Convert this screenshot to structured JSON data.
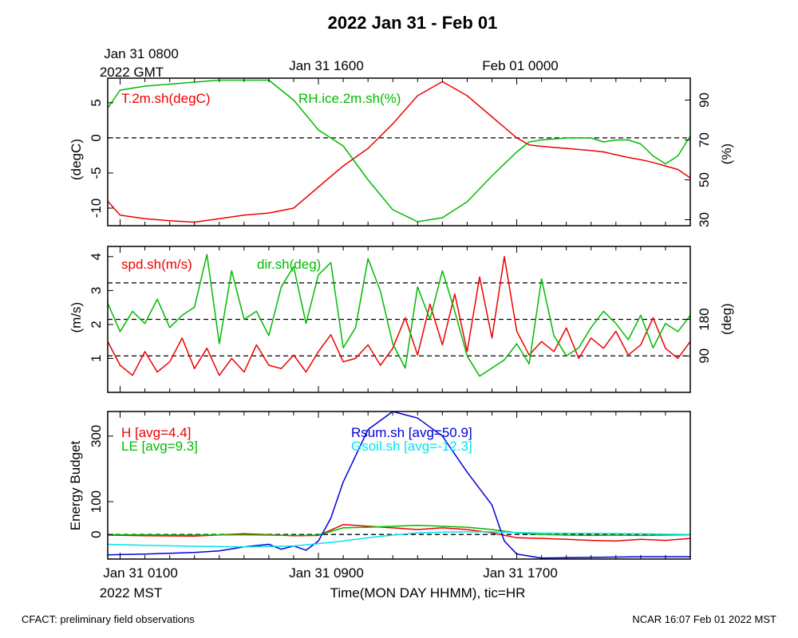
{
  "title": "2022 Jan 31 - Feb 01",
  "top_axis": {
    "gmt_ticks": [
      "Jan 31 0800",
      "Jan 31 1600",
      "Feb 01 0000"
    ],
    "gmt_year_label": "2022 GMT"
  },
  "bottom_axis": {
    "ticks": [
      "Jan 31 0100",
      "Jan 31 0900",
      "Jan 31 1700"
    ],
    "year_label": "2022 MST",
    "xlabel": "Time(MON DAY HHMM), tic=HR"
  },
  "footer": {
    "left": "CFACT: preliminary field observations",
    "right": "NCAR 16:07 Feb 01 2022 MST"
  },
  "colors": {
    "red": "#ee0000",
    "green": "#00bb00",
    "blue": "#0000dd",
    "cyan": "#00e5ee",
    "axis": "#000000"
  },
  "chart_data": [
    {
      "type": "line",
      "panel": "temperature-humidity",
      "x_unit": "hours since Jan 31 0000 MST",
      "xlim": [
        0.5,
        24.0
      ],
      "ylabel_left": "(degC)",
      "ylabel_right": "(%)",
      "ylim_left": [
        -12.5,
        8.5
      ],
      "ylim_right": [
        27,
        101
      ],
      "left_ticks": [
        "-10",
        "-5",
        "0",
        "5"
      ],
      "left_tick_values": [
        -10,
        -5,
        0,
        5
      ],
      "right_ticks": [
        "30",
        "50",
        "70",
        "90"
      ],
      "right_tick_values": [
        30,
        50,
        70,
        90
      ],
      "reference_lines_left": [
        0
      ],
      "series": [
        {
          "name": "T.2m.sh(degC)",
          "color": "red",
          "axis": "left",
          "x": [
            0.5,
            1,
            2,
            3,
            4,
            5,
            6,
            7,
            8,
            9,
            10,
            11,
            12,
            13,
            14,
            15,
            16,
            17,
            17.5,
            18,
            19,
            20,
            20.5,
            21,
            21.5,
            22,
            22.5,
            23,
            23.5,
            24
          ],
          "y": [
            -9,
            -11,
            -11.5,
            -11.8,
            -12,
            -11.5,
            -11,
            -10.7,
            -10,
            -7,
            -4,
            -1.5,
            2,
            6,
            8,
            6,
            3,
            0,
            -1,
            -1.2,
            -1.5,
            -1.8,
            -2,
            -2.4,
            -2.8,
            -3.1,
            -3.5,
            -4,
            -4.5,
            -5.7
          ]
        },
        {
          "name": "RH.ice.2m.sh(%)",
          "color": "green",
          "axis": "right",
          "x": [
            0.5,
            1,
            2,
            3,
            4,
            5,
            6,
            7,
            8,
            9,
            10,
            11,
            12,
            13,
            14,
            15,
            16,
            17,
            17.5,
            18,
            19,
            20,
            20.5,
            21,
            21.5,
            22,
            22.5,
            23,
            23.5,
            24
          ],
          "y": [
            86,
            95,
            97,
            98,
            99,
            100,
            100,
            100,
            90,
            75,
            67,
            50,
            35,
            29,
            31,
            39,
            52,
            64,
            69,
            70,
            71,
            71,
            69,
            70,
            70,
            68,
            62,
            58,
            62,
            72
          ]
        }
      ],
      "legend_labels": [
        "T.2m.sh(degC)",
        "RH.ice.2m.sh(%)"
      ]
    },
    {
      "type": "line",
      "panel": "wind",
      "x_unit": "hours since Jan 31 0000 MST",
      "xlim": [
        0.5,
        24.0
      ],
      "ylabel_left": "(m/s)",
      "ylabel_right": "(deg)",
      "ylim_left": [
        0,
        4.3
      ],
      "ylim_right": [
        0,
        360
      ],
      "left_ticks": [
        "1",
        "2",
        "3",
        "4"
      ],
      "left_tick_values": [
        1,
        2,
        3,
        4
      ],
      "right_ticks": [
        "90",
        "180"
      ],
      "right_tick_values": [
        90,
        180
      ],
      "reference_lines_right": [
        90,
        180,
        270
      ],
      "series": [
        {
          "name": "spd.sh(m/s)",
          "color": "red",
          "axis": "left",
          "x": [
            0.5,
            1,
            1.5,
            2,
            2.5,
            3,
            3.5,
            4,
            4.5,
            5,
            5.5,
            6,
            6.5,
            7,
            7.5,
            8,
            8.5,
            9,
            9.5,
            10,
            10.5,
            11,
            11.5,
            12,
            12.5,
            13,
            13.5,
            14,
            14.5,
            15,
            15.5,
            16,
            16.5,
            17,
            17.5,
            18,
            18.5,
            19,
            19.5,
            20,
            20.5,
            21,
            21.5,
            22,
            22.5,
            23,
            23.5,
            24
          ],
          "y": [
            1.5,
            0.8,
            0.5,
            1.2,
            0.6,
            0.9,
            1.6,
            0.7,
            1.3,
            0.5,
            1.0,
            0.6,
            1.4,
            0.8,
            0.7,
            1.1,
            0.6,
            1.2,
            1.7,
            0.9,
            1.0,
            1.4,
            0.8,
            1.3,
            2.2,
            1.1,
            2.6,
            1.4,
            2.9,
            1.2,
            3.4,
            1.6,
            4.0,
            1.8,
            1.1,
            1.5,
            1.2,
            1.9,
            1.0,
            1.6,
            1.3,
            1.8,
            1.1,
            1.4,
            2.2,
            1.3,
            1.0,
            1.5
          ]
        },
        {
          "name": "dir.sh(deg)",
          "color": "green",
          "axis": "right",
          "x": [
            0.5,
            1,
            1.5,
            2,
            2.5,
            3,
            3.5,
            4,
            4.5,
            5,
            5.5,
            6,
            6.5,
            7,
            7.5,
            8,
            8.5,
            9,
            9.5,
            10,
            10.5,
            11,
            11.5,
            12,
            12.5,
            13,
            13.5,
            14,
            14.5,
            15,
            15.5,
            16,
            16.5,
            17,
            17.5,
            18,
            18.5,
            19,
            19.5,
            20,
            20.5,
            21,
            21.5,
            22,
            22.5,
            23,
            23.5,
            24
          ],
          "y": [
            220,
            150,
            200,
            170,
            230,
            160,
            190,
            210,
            340,
            120,
            300,
            180,
            200,
            140,
            260,
            310,
            170,
            290,
            320,
            110,
            160,
            330,
            250,
            120,
            60,
            260,
            180,
            300,
            200,
            90,
            40,
            60,
            80,
            120,
            70,
            280,
            140,
            90,
            110,
            160,
            200,
            170,
            130,
            190,
            110,
            170,
            150,
            190
          ]
        }
      ],
      "legend_labels": [
        "spd.sh(m/s)",
        "dir.sh(deg)"
      ]
    },
    {
      "type": "line",
      "panel": "energy-budget",
      "x_unit": "hours since Jan 31 0000 MST",
      "xlim": [
        0.5,
        24.0
      ],
      "ylabel_left": "Energy Budget",
      "ylim_left": [
        -75,
        375
      ],
      "left_ticks": [
        "0",
        "100",
        "300"
      ],
      "left_tick_values": [
        0,
        100,
        300
      ],
      "reference_lines_left": [
        0
      ],
      "series": [
        {
          "name": "H",
          "color": "red",
          "avg": "4.4",
          "x": [
            0.5,
            2,
            4,
            6,
            8,
            9,
            10,
            11,
            12,
            13,
            14,
            15,
            16,
            17,
            18,
            19,
            20,
            21,
            22,
            23,
            24
          ],
          "y": [
            -2,
            -4,
            -5,
            2,
            -4,
            -3,
            30,
            25,
            20,
            15,
            20,
            15,
            5,
            -10,
            -12,
            -15,
            -18,
            -20,
            -15,
            -18,
            -12
          ]
        },
        {
          "name": "LE",
          "color": "green",
          "avg": "9.3",
          "x": [
            0.5,
            2,
            4,
            6,
            8,
            9,
            10,
            11,
            12,
            13,
            14,
            15,
            16,
            17,
            18,
            19,
            20,
            21,
            22,
            23,
            24
          ],
          "y": [
            -1,
            -1,
            -2,
            -1,
            -3,
            -2,
            20,
            22,
            25,
            28,
            25,
            22,
            15,
            5,
            0,
            -2,
            -3,
            -2,
            -3,
            -2,
            -1
          ]
        },
        {
          "name": "Rsum.sh",
          "color": "blue",
          "avg": "50.9",
          "x": [
            0.5,
            2,
            4,
            5,
            6,
            7,
            7.5,
            8,
            8.5,
            9,
            9.5,
            10,
            11,
            12,
            13,
            14,
            15,
            16,
            16.5,
            17,
            18,
            20,
            22,
            24
          ],
          "y": [
            -62,
            -60,
            -55,
            -50,
            -38,
            -30,
            -45,
            -35,
            -48,
            -20,
            50,
            160,
            320,
            375,
            355,
            300,
            190,
            90,
            -20,
            -60,
            -72,
            -70,
            -68,
            -68
          ]
        },
        {
          "name": "Gsoil.sh",
          "color": "cyan",
          "avg": "-12.3",
          "x": [
            0.5,
            2,
            4,
            6,
            8,
            9,
            10,
            11,
            12,
            13,
            14,
            15,
            16,
            17,
            18,
            20,
            22,
            24
          ],
          "y": [
            -30,
            -33,
            -36,
            -38,
            -35,
            -28,
            -20,
            -10,
            -2,
            5,
            7,
            8,
            8,
            6,
            4,
            3,
            2,
            0
          ]
        }
      ],
      "legend_labels": [
        "H [avg=4.4]",
        "LE [avg=9.3]",
        "Rsum.sh [avg=50.9]",
        "Gsoil.sh [avg=-12.3]"
      ]
    }
  ]
}
